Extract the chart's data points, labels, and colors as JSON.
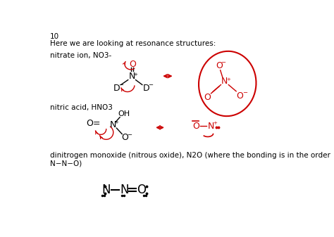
{
  "bg_color": "#ffffff",
  "page_num": "10",
  "line1": "Here we are looking at resonance structures:",
  "label1": "nitrate ion, NO3-",
  "label2": "nitric acid, HNO3",
  "label3": "dinitrogen monoxide (nitrous oxide), N2O (where the bonding is in the order\nN−N−O)",
  "text_color": "#000000",
  "red_color": "#cc0000",
  "font_size_body": 7.5,
  "font_size_small": 6,
  "font_size_large": 9,
  "font_size_medium": 8
}
